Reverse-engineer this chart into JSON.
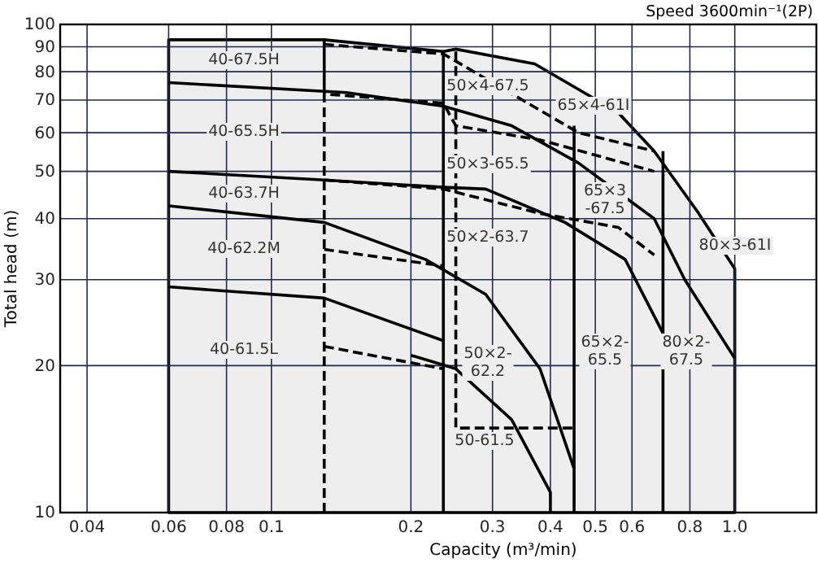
{
  "chart_data": {
    "type": "line",
    "title": "Speed  3600min⁻¹(2P)",
    "xlabel": "Capacity (m³/min)",
    "ylabel": "Total head  (m)",
    "log": "xy",
    "grid": true,
    "xlim": [
      0.035,
      1.5
    ],
    "ylim": [
      10,
      100
    ],
    "xticks": [
      0.04,
      0.06,
      0.08,
      0.1,
      0.2,
      0.3,
      0.4,
      0.5,
      0.6,
      0.8,
      {
        "value": 1,
        "label": "1.0"
      }
    ],
    "yticks": [
      10,
      20,
      30,
      40,
      50,
      60,
      70,
      80,
      90,
      100
    ],
    "series": [
      {
        "type": "area",
        "color": "#eeeeee",
        "x": [
          0.06,
          0.06,
          0.13,
          0.235,
          0.25,
          0.37,
          0.56,
          0.67,
          0.83,
          1.0,
          1.0
        ],
        "values": [
          10,
          93,
          93,
          88,
          89,
          83,
          66,
          55,
          41.4,
          31.6,
          10
        ]
      },
      {
        "color": "#000000",
        "line_style": "solid",
        "x": [
          0.06,
          0.145,
          0.235,
          0.33,
          0.46,
          0.67,
          0.78,
          1.0
        ],
        "values": [
          76,
          72.5,
          68,
          62,
          52,
          40,
          30,
          20.7
        ]
      },
      {
        "color": "#000000",
        "line_style": "solid",
        "x": [
          0.06,
          0.13,
          0.235,
          0.29,
          0.43,
          0.58,
          0.7,
          0.7
        ],
        "values": [
          50,
          48,
          46.4,
          46,
          39.3,
          33,
          23.3,
          10
        ]
      },
      {
        "color": "#000000",
        "line_style": "solid",
        "x": [
          0.06,
          0.13,
          0.215,
          0.29,
          0.38,
          0.45,
          0.45
        ],
        "values": [
          42.5,
          39.3,
          33,
          28,
          19.7,
          12.3,
          10
        ]
      },
      {
        "color": "#000000",
        "line_style": "solid",
        "x": [
          0.06,
          0.13,
          0.235,
          0.235
        ],
        "values": [
          29,
          27.5,
          22.5,
          10
        ]
      },
      {
        "color": "#000000",
        "line_style": "solid",
        "x": [
          0.235,
          0.235
        ],
        "values": [
          88,
          22.5
        ]
      },
      {
        "color": "#000000",
        "line_style": "solid",
        "x": [
          0.2,
          0.25,
          0.33,
          0.4,
          0.4
        ],
        "values": [
          21,
          19.7,
          15.5,
          11,
          10
        ]
      },
      {
        "color": "#000000",
        "line_style": "solid",
        "x": [
          0.13,
          0.13
        ],
        "values": [
          93,
          72
        ]
      },
      {
        "color": "#000000",
        "line_style": "solid",
        "x": [
          0.45,
          0.45
        ],
        "values": [
          62,
          12.3
        ]
      },
      {
        "color": "#000000",
        "line_style": "solid",
        "x": [
          0.7,
          0.7
        ],
        "values": [
          55,
          23.3
        ]
      },
      {
        "color": "#000000",
        "line_style": "dashed",
        "x": [
          0.13,
          0.235,
          0.46,
          0.67
        ],
        "values": [
          91,
          87,
          60,
          55
        ]
      },
      {
        "color": "#000000",
        "line_style": "dashed",
        "x": [
          0.13,
          0.13,
          0.235,
          0.25,
          0.38,
          0.67
        ],
        "values": [
          10,
          72,
          69,
          62,
          58,
          50
        ]
      },
      {
        "color": "#000000",
        "line_style": "dashed",
        "x": [
          0.13,
          0.235,
          0.38,
          0.56,
          0.67
        ],
        "values": [
          48,
          46,
          41,
          38.4,
          33.7
        ]
      },
      {
        "color": "#000000",
        "line_style": "dashed",
        "x": [
          0.13,
          0.235
        ],
        "values": [
          34.6,
          32
        ]
      },
      {
        "color": "#000000",
        "line_style": "dashed",
        "x": [
          0.13,
          0.235
        ],
        "values": [
          21.9,
          19.7
        ]
      },
      {
        "color": "#000000",
        "line_style": "dashed",
        "x": [
          0.25,
          0.25,
          0.45
        ],
        "values": [
          88,
          14.9,
          14.9
        ]
      }
    ],
    "annotations": [
      "40-67.5H",
      "40-65.5H",
      "40-63.7H",
      "40-62.2M",
      "40-61.5L",
      "50×4-67.5",
      "65×4-61I",
      "50×3-65.5",
      "65×3\n-67.5",
      "50×2-63.7",
      "80×3-61I",
      "50×2-\n62.2",
      "50-61.5",
      "65×2-\n65.5",
      "80×2-\n67.5"
    ]
  }
}
